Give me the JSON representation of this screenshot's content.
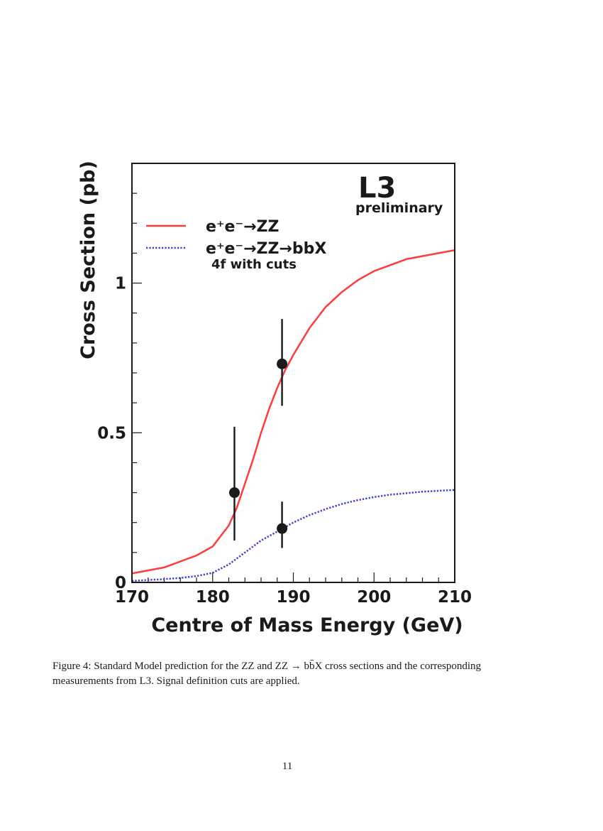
{
  "chart_data": {
    "type": "line",
    "experiment_label": "L3",
    "experiment_sublabel": "preliminary",
    "xlabel": "Centre of Mass Energy (GeV)",
    "ylabel": "Cross Section (pb)",
    "xlim": [
      170,
      210
    ],
    "ylim": [
      0,
      1.4
    ],
    "x_ticks": [
      170,
      180,
      190,
      200,
      210
    ],
    "x_tick_labels": [
      "170",
      "180",
      "190",
      "200",
      "210"
    ],
    "y_ticks": [
      0,
      0.5,
      1
    ],
    "y_tick_labels": [
      "0",
      "0.5",
      "1"
    ],
    "grid": false,
    "legend_position": "top-left",
    "series": [
      {
        "name": "e⁺e⁻→ZZ",
        "style": "solid",
        "color": "#ff3b3b",
        "x": [
          170,
          172,
          174,
          176,
          178,
          180,
          182,
          183,
          184,
          185,
          186,
          187,
          188,
          189,
          190,
          192,
          194,
          196,
          198,
          200,
          202,
          204,
          206,
          208,
          210
        ],
        "y": [
          0.03,
          0.04,
          0.05,
          0.07,
          0.09,
          0.12,
          0.19,
          0.25,
          0.33,
          0.41,
          0.5,
          0.58,
          0.65,
          0.71,
          0.76,
          0.85,
          0.92,
          0.97,
          1.01,
          1.04,
          1.06,
          1.08,
          1.09,
          1.1,
          1.11
        ]
      },
      {
        "name": "e⁺e⁻→ZZ→bbX",
        "sublabel": "4f with cuts",
        "style": "dotted",
        "color": "#3b3bdd",
        "x": [
          170,
          172,
          174,
          176,
          178,
          180,
          182,
          184,
          186,
          188,
          190,
          192,
          194,
          196,
          198,
          200,
          202,
          204,
          206,
          208,
          210
        ],
        "y": [
          0.005,
          0.008,
          0.011,
          0.015,
          0.021,
          0.032,
          0.06,
          0.1,
          0.14,
          0.17,
          0.2,
          0.225,
          0.245,
          0.262,
          0.275,
          0.285,
          0.293,
          0.298,
          0.303,
          0.306,
          0.309
        ]
      }
    ],
    "measurements": [
      {
        "x": 182.7,
        "y": 0.3,
        "err_low": 0.16,
        "err_high": 0.22
      },
      {
        "x": 188.6,
        "y": 0.73,
        "err_low": 0.14,
        "err_high": 0.15
      },
      {
        "x": 188.6,
        "y": 0.18,
        "err_low": 0.065,
        "err_high": 0.09
      }
    ]
  },
  "caption": "Figure 4: Standard Model prediction for the ZZ and ZZ → bb̄X cross sections and the corresponding measurements from L3. Signal definition cuts are applied.",
  "page_number": "11"
}
